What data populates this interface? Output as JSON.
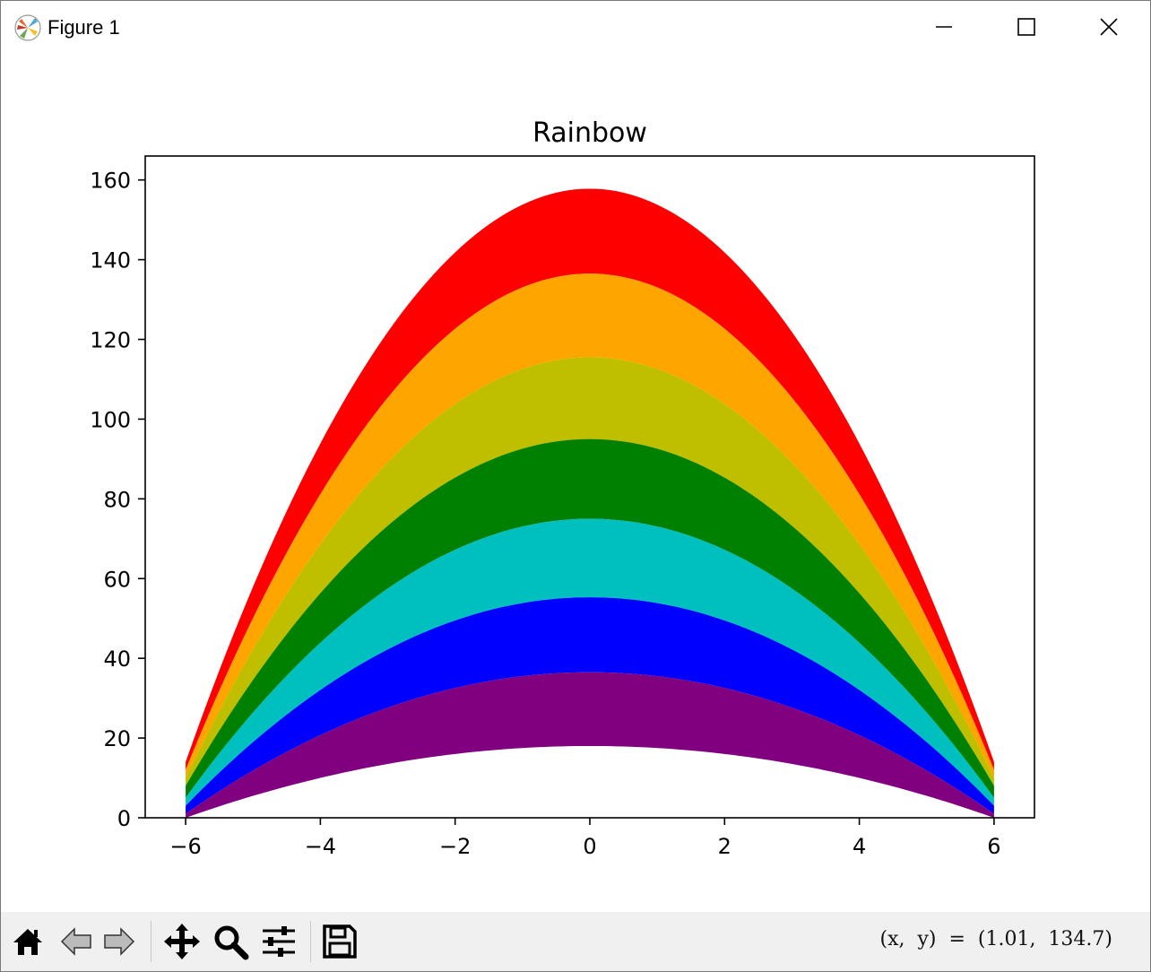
{
  "window": {
    "title": "Figure 1",
    "controls": [
      "minimize",
      "maximize",
      "close"
    ]
  },
  "toolbar": {
    "buttons": [
      {
        "name": "home",
        "icon": "home-icon"
      },
      {
        "name": "back",
        "icon": "back-arrow-icon"
      },
      {
        "name": "forward",
        "icon": "forward-arrow-icon"
      },
      {
        "name": "pan",
        "icon": "move-icon"
      },
      {
        "name": "zoom",
        "icon": "magnifier-icon"
      },
      {
        "name": "configure",
        "icon": "sliders-icon"
      },
      {
        "name": "save",
        "icon": "floppy-disk-icon"
      }
    ],
    "coords": "(x,  y)  =  (1.01,  134.7)"
  },
  "chart_data": {
    "type": "area",
    "title": "Rainbow",
    "xlabel": "",
    "ylabel": "",
    "xlim": [
      -6.6,
      6.6
    ],
    "ylim": [
      0,
      166
    ],
    "xticks": [
      -6,
      -4,
      -2,
      0,
      2,
      4,
      6
    ],
    "yticks": [
      0,
      20,
      40,
      60,
      80,
      100,
      120,
      140,
      160
    ],
    "grid": false,
    "x_range": [
      -6,
      6
    ],
    "bands": [
      {
        "color": "#ff0000",
        "lower": {
          "peak": 136.5,
          "end": 12.0
        },
        "upper": {
          "peak": 157.8,
          "end": 14.0
        }
      },
      {
        "color": "#ffa500",
        "lower": {
          "peak": 115.5,
          "end": 10.0
        },
        "upper": {
          "peak": 136.5,
          "end": 12.0
        }
      },
      {
        "color": "#bfbf00",
        "lower": {
          "peak": 95.0,
          "end": 8.0
        },
        "upper": {
          "peak": 115.5,
          "end": 10.0
        }
      },
      {
        "color": "#008000",
        "lower": {
          "peak": 75.0,
          "end": 5.0
        },
        "upper": {
          "peak": 95.0,
          "end": 8.0
        }
      },
      {
        "color": "#00bfbf",
        "lower": {
          "peak": 55.3,
          "end": 3.0
        },
        "upper": {
          "peak": 75.0,
          "end": 5.0
        }
      },
      {
        "color": "#0000ff",
        "lower": {
          "peak": 36.5,
          "end": 1.0
        },
        "upper": {
          "peak": 55.3,
          "end": 3.0
        }
      },
      {
        "color": "#800080",
        "lower": {
          "peak": 18.0,
          "end": 0.0
        },
        "upper": {
          "peak": 36.5,
          "end": 1.0
        }
      }
    ]
  }
}
